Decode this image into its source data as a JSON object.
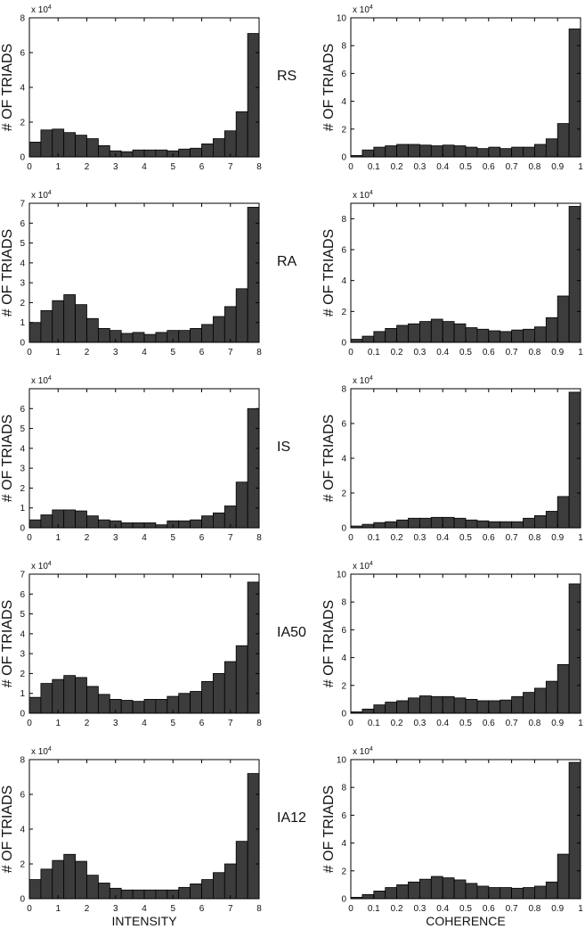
{
  "colors": {
    "bar": "#3c3c3c",
    "bar_edge": "#000000",
    "axes": "#000000"
  },
  "chart_data": [
    {
      "id": "RS-intensity",
      "type": "bar",
      "row_label": "RS",
      "xlabel": "",
      "ylabel": "# OF TRIADS",
      "y_multiplier": "x 10",
      "y_exponent": "4",
      "xlim": [
        0,
        8
      ],
      "ylim": [
        0,
        8
      ],
      "xticks": [
        "0",
        "1",
        "2",
        "3",
        "4",
        "5",
        "6",
        "7",
        "8"
      ],
      "yticks": [
        "0",
        "2",
        "4",
        "6",
        "8"
      ],
      "values": [
        0.85,
        1.55,
        1.6,
        1.4,
        1.25,
        1.05,
        0.65,
        0.35,
        0.3,
        0.4,
        0.4,
        0.4,
        0.35,
        0.45,
        0.5,
        0.75,
        1.05,
        1.5,
        2.6,
        7.1
      ]
    },
    {
      "id": "RS-coherence",
      "type": "bar",
      "row_label": "RS",
      "xlabel": "",
      "ylabel": "# OF TRIADS",
      "y_multiplier": "x 10",
      "y_exponent": "4",
      "xlim": [
        0,
        1
      ],
      "ylim": [
        0,
        10
      ],
      "xticks": [
        "0",
        "0.1",
        "0.2",
        "0.3",
        "0.4",
        "0.5",
        "0.6",
        "0.7",
        "0.8",
        "0.9",
        "1"
      ],
      "yticks": [
        "0",
        "2",
        "4",
        "6",
        "8",
        "10"
      ],
      "values": [
        0.1,
        0.5,
        0.7,
        0.8,
        0.9,
        0.9,
        0.85,
        0.8,
        0.85,
        0.8,
        0.7,
        0.6,
        0.7,
        0.6,
        0.7,
        0.7,
        0.9,
        1.3,
        2.4,
        9.2
      ]
    },
    {
      "id": "RA-intensity",
      "type": "bar",
      "row_label": "RA",
      "xlabel": "",
      "ylabel": "# OF TRIADS",
      "y_multiplier": "x 10",
      "y_exponent": "4",
      "xlim": [
        0,
        8
      ],
      "ylim": [
        0,
        7
      ],
      "xticks": [
        "0",
        "1",
        "2",
        "3",
        "4",
        "5",
        "6",
        "7",
        "8"
      ],
      "yticks": [
        "0",
        "1",
        "2",
        "3",
        "4",
        "5",
        "6",
        "7"
      ],
      "values": [
        1.0,
        1.6,
        2.1,
        2.4,
        1.9,
        1.2,
        0.7,
        0.6,
        0.45,
        0.5,
        0.4,
        0.5,
        0.6,
        0.6,
        0.7,
        0.9,
        1.3,
        1.8,
        2.7,
        6.8
      ]
    },
    {
      "id": "RA-coherence",
      "type": "bar",
      "row_label": "RA",
      "xlabel": "",
      "ylabel": "# OF TRIADS",
      "y_multiplier": "x 10",
      "y_exponent": "4",
      "xlim": [
        0,
        1
      ],
      "ylim": [
        0,
        9
      ],
      "xticks": [
        "0",
        "0.1",
        "0.2",
        "0.3",
        "0.4",
        "0.5",
        "0.6",
        "0.7",
        "0.8",
        "0.9",
        "1"
      ],
      "yticks": [
        "0",
        "2",
        "4",
        "6",
        "8"
      ],
      "values": [
        0.2,
        0.4,
        0.7,
        0.9,
        1.1,
        1.2,
        1.35,
        1.5,
        1.35,
        1.2,
        0.95,
        0.85,
        0.75,
        0.7,
        0.8,
        0.85,
        1.0,
        1.6,
        3.0,
        8.8
      ]
    },
    {
      "id": "IS-intensity",
      "type": "bar",
      "row_label": "IS",
      "xlabel": "",
      "ylabel": "# OF TRIADS",
      "y_multiplier": "x 10",
      "y_exponent": "4",
      "xlim": [
        0,
        8
      ],
      "ylim": [
        0,
        7
      ],
      "xticks": [
        "0",
        "1",
        "2",
        "3",
        "4",
        "5",
        "6",
        "7",
        "8"
      ],
      "yticks": [
        "0",
        "1",
        "2",
        "3",
        "4",
        "5",
        "6"
      ],
      "values": [
        0.4,
        0.65,
        0.9,
        0.9,
        0.85,
        0.6,
        0.4,
        0.35,
        0.25,
        0.25,
        0.25,
        0.15,
        0.35,
        0.35,
        0.4,
        0.6,
        0.75,
        1.1,
        2.3,
        6.0
      ]
    },
    {
      "id": "IS-coherence",
      "type": "bar",
      "row_label": "IS",
      "xlabel": "",
      "ylabel": "# OF TRIADS",
      "y_multiplier": "x 10",
      "y_exponent": "4",
      "xlim": [
        0,
        1
      ],
      "ylim": [
        0,
        8
      ],
      "xticks": [
        "0",
        "0.1",
        "0.2",
        "0.3",
        "0.4",
        "0.5",
        "0.6",
        "0.7",
        "0.8",
        "0.9",
        "1"
      ],
      "yticks": [
        "0",
        "2",
        "4",
        "6",
        "8"
      ],
      "values": [
        0.1,
        0.2,
        0.3,
        0.35,
        0.45,
        0.55,
        0.55,
        0.6,
        0.6,
        0.55,
        0.45,
        0.4,
        0.35,
        0.35,
        0.35,
        0.55,
        0.7,
        0.95,
        1.8,
        7.8
      ]
    },
    {
      "id": "IA50-intensity",
      "type": "bar",
      "row_label": "IA50",
      "xlabel": "",
      "ylabel": "# OF TRIADS",
      "y_multiplier": "x 10",
      "y_exponent": "4",
      "xlim": [
        0,
        8
      ],
      "ylim": [
        0,
        7
      ],
      "xticks": [
        "0",
        "1",
        "2",
        "3",
        "4",
        "5",
        "6",
        "7",
        "8"
      ],
      "yticks": [
        "0",
        "1",
        "2",
        "3",
        "4",
        "5",
        "6",
        "7"
      ],
      "values": [
        0.8,
        1.5,
        1.7,
        1.9,
        1.8,
        1.35,
        0.95,
        0.7,
        0.65,
        0.6,
        0.7,
        0.7,
        0.85,
        1.0,
        1.1,
        1.6,
        2.0,
        2.6,
        3.4,
        6.6
      ]
    },
    {
      "id": "IA50-coherence",
      "type": "bar",
      "row_label": "IA50",
      "xlabel": "",
      "ylabel": "# OF TRIADS",
      "y_multiplier": "x 10",
      "y_exponent": "4",
      "xlim": [
        0,
        1
      ],
      "ylim": [
        0,
        10
      ],
      "xticks": [
        "0",
        "0.1",
        "0.2",
        "0.3",
        "0.4",
        "0.5",
        "0.6",
        "0.7",
        "0.8",
        "0.9",
        "1"
      ],
      "yticks": [
        "0",
        "2",
        "4",
        "6",
        "8",
        "10"
      ],
      "values": [
        0.1,
        0.3,
        0.6,
        0.8,
        0.9,
        1.1,
        1.25,
        1.2,
        1.2,
        1.1,
        1.0,
        0.9,
        0.9,
        0.95,
        1.2,
        1.5,
        1.8,
        2.3,
        3.5,
        9.3
      ]
    },
    {
      "id": "IA12-intensity",
      "type": "bar",
      "row_label": "IA12",
      "xlabel": "INTENSITY",
      "ylabel": "# OF TRIADS",
      "y_multiplier": "x 10",
      "y_exponent": "4",
      "xlim": [
        0,
        8
      ],
      "ylim": [
        0,
        8
      ],
      "xticks": [
        "0",
        "1",
        "2",
        "3",
        "4",
        "5",
        "6",
        "7",
        "8"
      ],
      "yticks": [
        "0",
        "2",
        "4",
        "6",
        "8"
      ],
      "values": [
        1.1,
        1.7,
        2.2,
        2.55,
        2.15,
        1.35,
        0.9,
        0.6,
        0.5,
        0.5,
        0.5,
        0.5,
        0.5,
        0.65,
        0.85,
        1.1,
        1.5,
        2.0,
        3.3,
        7.2
      ]
    },
    {
      "id": "IA12-coherence",
      "type": "bar",
      "row_label": "IA12",
      "xlabel": "COHERENCE",
      "ylabel": "# OF TRIADS",
      "y_multiplier": "x 10",
      "y_exponent": "4",
      "xlim": [
        0,
        1
      ],
      "ylim": [
        0,
        10
      ],
      "xticks": [
        "0",
        "0.1",
        "0.2",
        "0.3",
        "0.4",
        "0.5",
        "0.6",
        "0.7",
        "0.8",
        "0.9",
        "1"
      ],
      "yticks": [
        "0",
        "2",
        "4",
        "6",
        "8",
        "10"
      ],
      "values": [
        0.1,
        0.3,
        0.55,
        0.8,
        1.0,
        1.2,
        1.4,
        1.6,
        1.5,
        1.35,
        1.1,
        0.9,
        0.8,
        0.8,
        0.75,
        0.8,
        0.9,
        1.2,
        3.2,
        9.8
      ]
    }
  ]
}
